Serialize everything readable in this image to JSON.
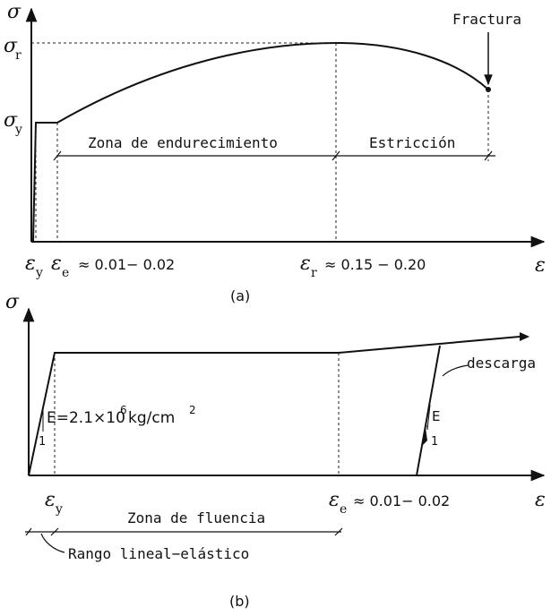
{
  "diagram_a": {
    "sigma_axis": "σ",
    "eps_axis": "ε",
    "sigma_r": "σ",
    "sigma_r_sub": "r",
    "sigma_y": "σ",
    "sigma_y_sub": "y",
    "fractura": "Fractura",
    "zona_endurecimiento": "Zona de endurecimiento",
    "estriccion": "Estricción",
    "eps_y": "ε",
    "eps_y_sub": "y",
    "eps_e": "ε",
    "eps_e_sub": "e",
    "eps_e_val": "≈ 0.01− 0.02",
    "eps_r": "ε",
    "eps_r_sub": "r",
    "eps_r_val": "≈ 0.15 − 0.20",
    "caption": "(a)"
  },
  "diagram_b": {
    "sigma_axis": "σ",
    "eps_axis": "ε",
    "modulus": "E=2.1×10",
    "modulus_exp": "6",
    "modulus_unit": "kg/cm",
    "modulus_unit_exp": "2",
    "slope_one_left": "1",
    "slope_e": "E",
    "slope_one_right": "1",
    "descarga": "descarga",
    "eps_y": "ε",
    "eps_y_sub": "y",
    "eps_e": "ε",
    "eps_e_sub": "e",
    "eps_e_val": "≈ 0.01− 0.02",
    "zona_fluencia": "Zona de fluencia",
    "rango": "Rango lineal−elástico",
    "caption": "(b)"
  }
}
